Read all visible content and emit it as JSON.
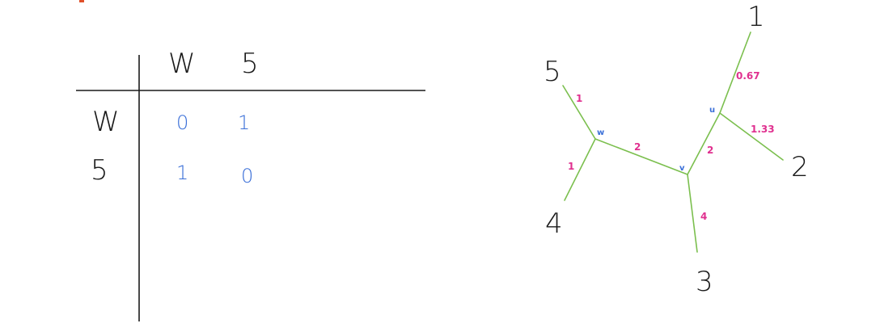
{
  "matrix": {
    "col_headers": [
      "W",
      "5"
    ],
    "row_headers": [
      "W",
      "5"
    ],
    "cells": [
      [
        "0",
        "1"
      ],
      [
        "1",
        "0"
      ]
    ],
    "colors": {
      "headers": "#1a1a1a",
      "values": "#3a6fd8",
      "rules": "#1a1a1a"
    }
  },
  "tree": {
    "leaves": [
      "1",
      "2",
      "3",
      "4",
      "5"
    ],
    "internal_nodes": [
      "u",
      "v",
      "w"
    ],
    "edges": [
      {
        "name": "edge-u-1",
        "from": "u",
        "to": "1",
        "length": "0.67"
      },
      {
        "name": "edge-u-2",
        "from": "u",
        "to": "2",
        "length": "1.33"
      },
      {
        "name": "edge-v-u",
        "from": "v",
        "to": "u",
        "length": "2"
      },
      {
        "name": "edge-w-v",
        "from": "w",
        "to": "v",
        "length": "2"
      },
      {
        "name": "edge-w-5",
        "from": "w",
        "to": "5",
        "length": "1"
      },
      {
        "name": "edge-w-4",
        "from": "w",
        "to": "4",
        "length": "1"
      },
      {
        "name": "edge-v-3",
        "from": "v",
        "to": "3",
        "length": "4"
      }
    ],
    "colors": {
      "edges": "#7bbf4e",
      "lengths": "#e0308f",
      "internal": "#3a6fd8",
      "leaves": "#1a1a1a"
    }
  }
}
